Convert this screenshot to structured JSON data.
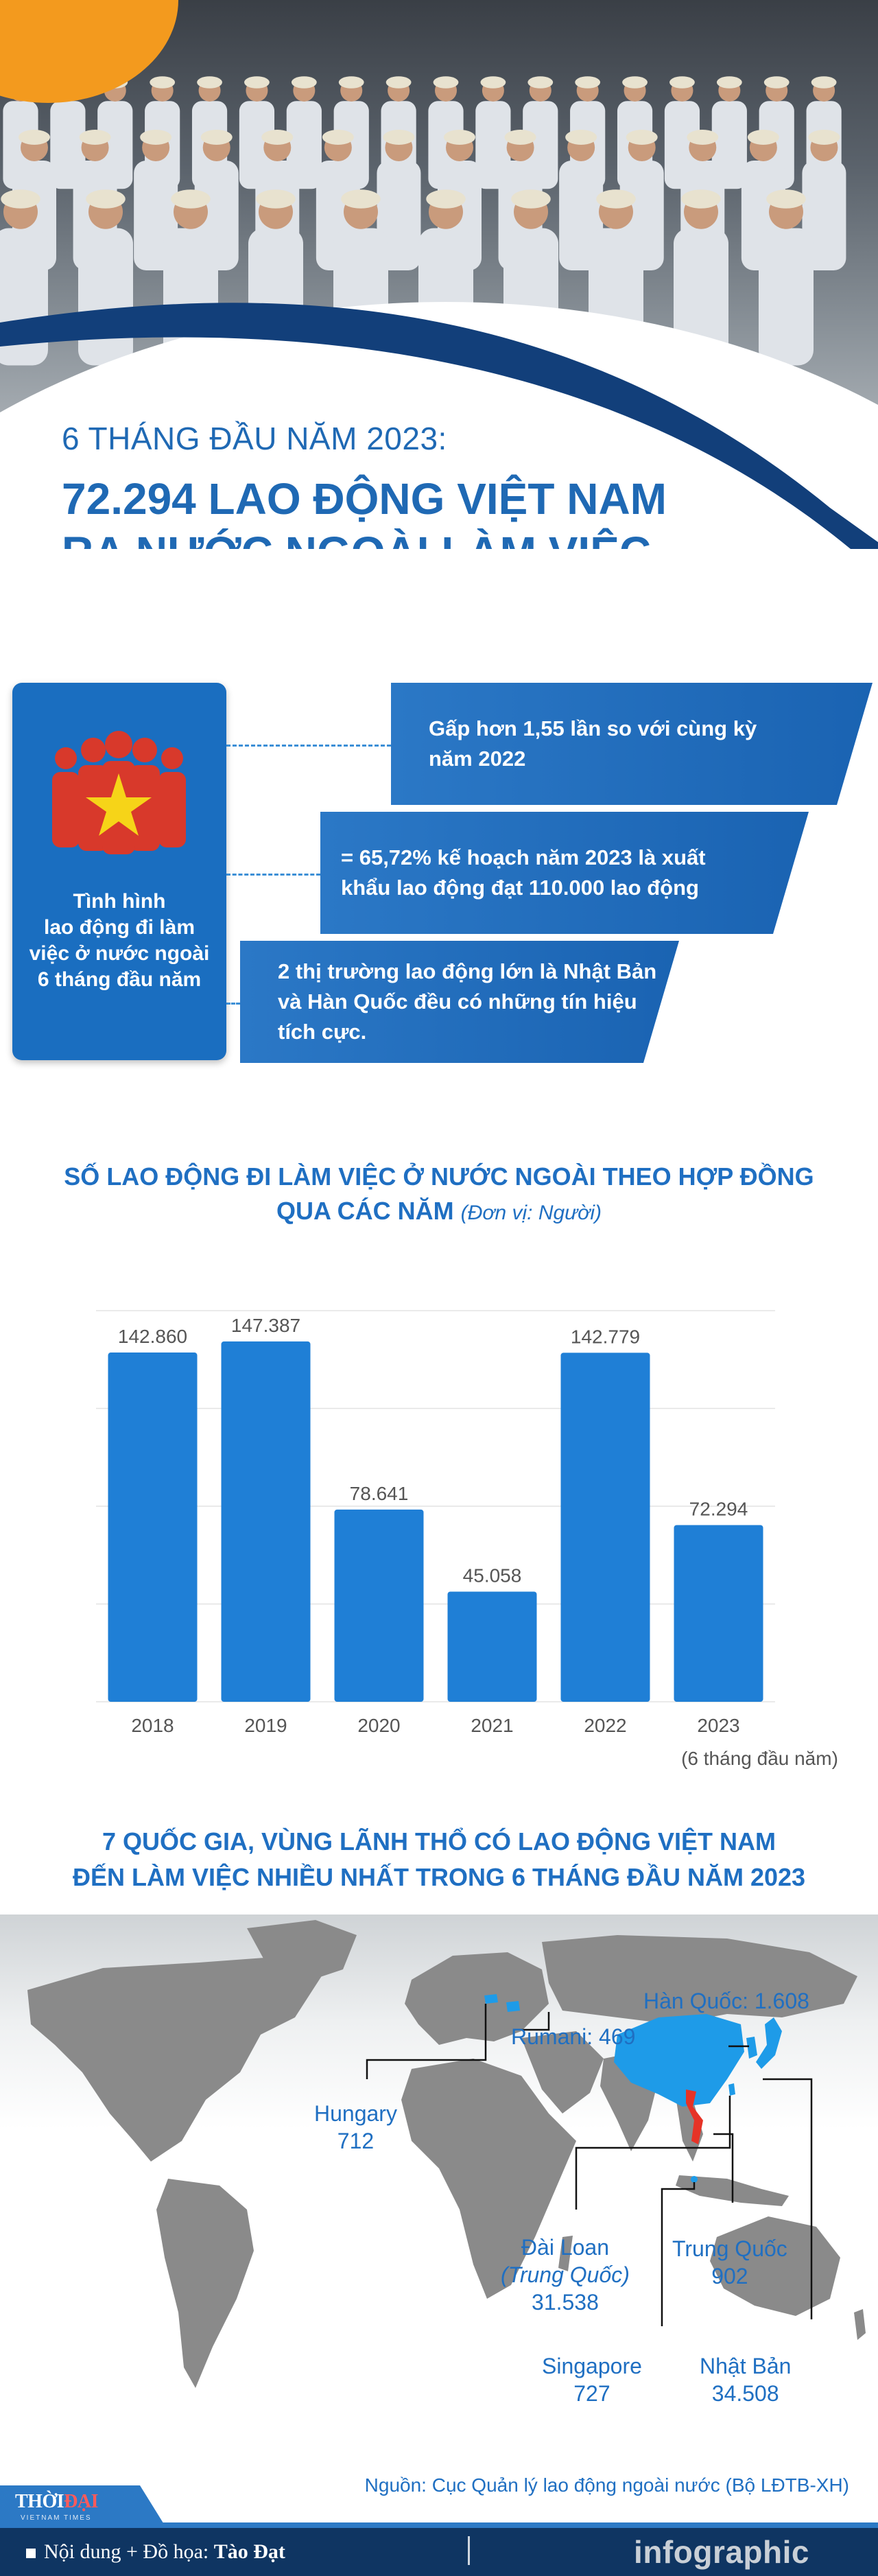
{
  "header": {
    "subtitle": "6 THÁNG ĐẦU NĂM 2023:",
    "title_line1": "72.294 LAO ĐỘNG VIỆT NAM",
    "title_line2": "RA NƯỚC NGOÀI LÀM VIỆC"
  },
  "summary": {
    "label_lines": [
      "Tình hình",
      "lao động đi làm",
      "việc ở nước ngoài",
      "6 tháng đầu năm"
    ],
    "facts": [
      {
        "lines": [
          "Gấp hơn 1,55 lần so với cùng kỳ",
          "năm 2022"
        ]
      },
      {
        "lines": [
          "= 65,72% kế hoạch năm 2023 là xuất",
          "khẩu lao động đạt 110.000 lao động"
        ]
      },
      {
        "lines": [
          "2 thị trường lao động lớn là Nhật Bản",
          "và Hàn Quốc đều có những tín hiệu",
          "tích cực."
        ]
      }
    ],
    "icon": "people-with-flag-icon"
  },
  "chart_title": {
    "line1": "SỐ LAO ĐỘNG ĐI LÀM VIỆC Ở NƯỚC NGOÀI THEO HỢP ĐỒNG",
    "line2": "QUA CÁC NĂM",
    "unit": "(Đơn vị: Người)"
  },
  "chart_data": {
    "type": "bar",
    "categories": [
      "2018",
      "2019",
      "2020",
      "2021",
      "2022",
      "2023"
    ],
    "values": [
      142860,
      147387,
      78641,
      45058,
      142779,
      72294
    ],
    "value_labels": [
      "142.860",
      "147.387",
      "78.641",
      "45.058",
      "142.779",
      "72.294"
    ],
    "category_note": "(6 tháng đầu năm)",
    "ylim": [
      0,
      160000
    ],
    "grid": true,
    "bar_color": "#1f7fd6"
  },
  "map_title": {
    "line1": "7 QUỐC GIA, VÙNG LÃNH THỔ CÓ LAO ĐỘNG VIỆT NAM",
    "line2": "ĐẾN LÀM VIỆC NHIỀU NHẤT TRONG 6 THÁNG ĐẦU NĂM 2023"
  },
  "map_labels": {
    "korea": "Hàn Quốc: 1.608",
    "romania": "Rumani: 469",
    "hungary_name": "Hungary",
    "hungary_value": "712",
    "taiwan_name": "Đài Loan",
    "taiwan_note": "(Trung Quốc)",
    "taiwan_value": "31.538",
    "china_name": "Trung Quốc",
    "china_value": "902",
    "singapore_name": "Singapore",
    "singapore_value": "727",
    "japan_name": "Nhật Bản",
    "japan_value": "34.508"
  },
  "map_colors": {
    "land": "#8a8a8a",
    "highlight": "#1e9be8",
    "vietnam": "#e63327"
  },
  "footer": {
    "source": "Nguồn: Cục Quản lý lao động ngoài nước (Bộ LĐTB-XH)",
    "logo_a": "THỜI",
    "logo_b": "ĐẠI",
    "logo_sub": "VIETNAM TIMES",
    "credit_label": "Nội dung + Đồ họa:",
    "credit_name": "Tào Đạt",
    "brand": "infographic"
  }
}
